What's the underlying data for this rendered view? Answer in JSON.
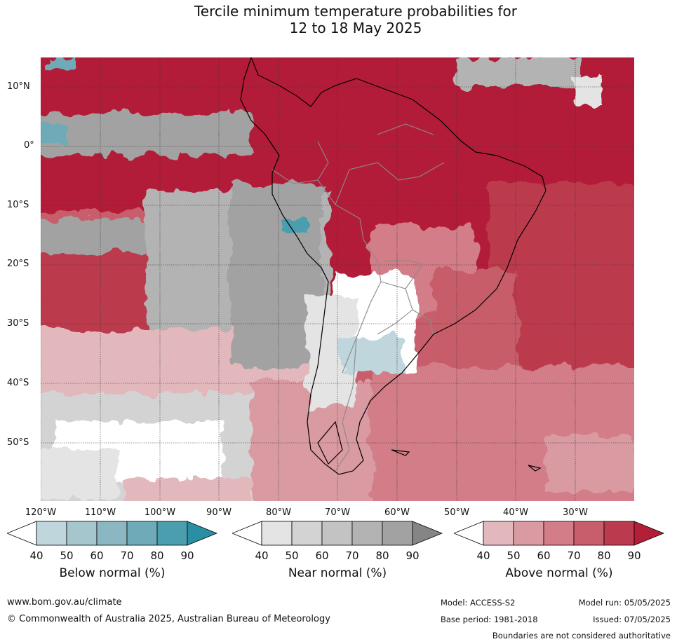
{
  "title_line1": "Tercile minimum temperature probabilities for",
  "title_line2": "12 to 18 May 2025",
  "map": {
    "lat_labels": [
      "10°N",
      "0°",
      "10°S",
      "20°S",
      "30°S",
      "40°S",
      "50°S"
    ],
    "lon_labels": [
      "120°W",
      "110°W",
      "100°W",
      "90°W",
      "80°W",
      "70°W",
      "60°W",
      "50°W",
      "40°W",
      "30°W"
    ],
    "grid": "dotted",
    "overlays": [
      "coastlines",
      "country boundaries"
    ]
  },
  "colorbars": [
    {
      "title": "Below normal (%)",
      "ticks": [
        "40",
        "50",
        "60",
        "70",
        "80",
        "90"
      ],
      "colors": [
        "#ffffff",
        "#bfd6dc",
        "#a5c6cd",
        "#8ab7c1",
        "#6eaab7",
        "#4b9eae",
        "#2b8fa3"
      ]
    },
    {
      "title": "Near normal (%)",
      "ticks": [
        "40",
        "50",
        "60",
        "70",
        "80",
        "90"
      ],
      "colors": [
        "#ffffff",
        "#e4e4e4",
        "#d3d3d3",
        "#c3c3c3",
        "#b3b3b3",
        "#a2a2a2",
        "#858585"
      ]
    },
    {
      "title": "Above normal (%)",
      "ticks": [
        "40",
        "50",
        "60",
        "70",
        "80",
        "90"
      ],
      "colors": [
        "#ffffff",
        "#e3b8bd",
        "#d99aa2",
        "#d27d87",
        "#c85d6b",
        "#bb3a4d",
        "#b31f39"
      ]
    }
  ],
  "footer": {
    "url": "www.bom.gov.au/climate",
    "copyright": "© Commonwealth of Australia 2025, Australian Bureau of Meteorology",
    "model": "Model: ACCESS-S2",
    "base_period": "Base period: 1981-2018",
    "model_run": "Model run: 05/05/2025",
    "issued": "Issued: 07/05/2025",
    "disclaimer": "Boundaries are not considered authoritative"
  }
}
